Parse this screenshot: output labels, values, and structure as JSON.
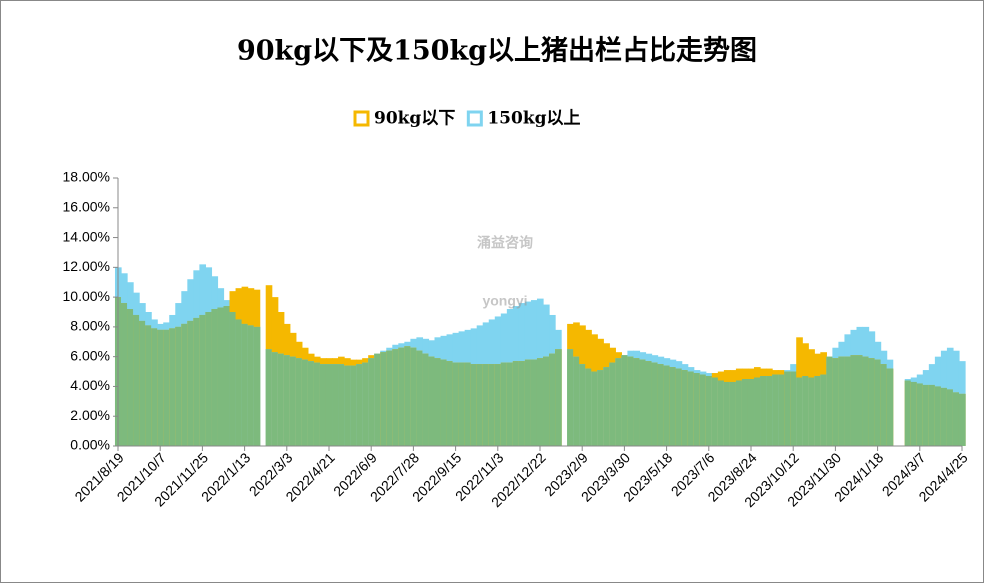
{
  "chart_data": {
    "type": "overlap-bar",
    "title": "90kg以下及150kg以上猪出栏占比走势图",
    "watermark": [
      "涌益咨询",
      "yongyi"
    ],
    "categories": [
      "2021/8/19",
      null,
      null,
      null,
      null,
      null,
      null,
      "2021/10/7",
      null,
      null,
      null,
      null,
      null,
      null,
      "2021/11/25",
      null,
      null,
      null,
      null,
      null,
      null,
      "2022/1/13",
      null,
      null,
      null,
      null,
      null,
      null,
      "2022/3/3",
      null,
      null,
      null,
      null,
      null,
      null,
      "2022/4/21",
      null,
      null,
      null,
      null,
      null,
      null,
      "2022/6/9",
      null,
      null,
      null,
      null,
      null,
      null,
      "2022/7/28",
      null,
      null,
      null,
      null,
      null,
      null,
      "2022/9/15",
      null,
      null,
      null,
      null,
      null,
      null,
      "2022/11/3",
      null,
      null,
      null,
      null,
      null,
      null,
      "2022/12/22",
      null,
      null,
      null,
      null,
      null,
      null,
      "2023/2/9",
      null,
      null,
      null,
      null,
      null,
      null,
      "2023/3/30",
      null,
      null,
      null,
      null,
      null,
      null,
      "2023/5/18",
      null,
      null,
      null,
      null,
      null,
      null,
      "2023/7/6",
      null,
      null,
      null,
      null,
      null,
      null,
      "2023/8/24",
      null,
      null,
      null,
      null,
      null,
      null,
      "2023/10/12",
      null,
      null,
      null,
      null,
      null,
      null,
      "2023/11/30",
      null,
      null,
      null,
      null,
      null,
      null,
      "2024/1/18",
      null,
      null,
      null,
      null,
      null,
      null,
      "2024/3/7",
      null,
      null,
      null,
      null,
      null,
      null,
      "2024/4/25"
    ],
    "series": [
      {
        "name": "90kg以下",
        "color": "#f5b800",
        "values": [
          10.0,
          9.6,
          9.2,
          8.8,
          8.4,
          8.1,
          7.9,
          7.8,
          7.8,
          7.9,
          8.0,
          8.2,
          8.4,
          8.6,
          8.8,
          9.0,
          9.2,
          9.3,
          9.4,
          10.4,
          10.6,
          10.7,
          10.6,
          10.5,
          null,
          10.8,
          10.0,
          9.0,
          8.2,
          7.6,
          7.0,
          6.6,
          6.2,
          6.0,
          5.9,
          5.9,
          5.9,
          6.0,
          5.9,
          5.8,
          5.8,
          5.9,
          6.1,
          6.2,
          6.3,
          6.4,
          6.5,
          6.6,
          6.7,
          6.6,
          6.4,
          6.2,
          6.0,
          5.9,
          5.8,
          5.7,
          5.6,
          5.6,
          5.6,
          5.5,
          5.5,
          5.5,
          5.5,
          5.5,
          5.6,
          5.6,
          5.7,
          5.7,
          5.8,
          5.8,
          5.9,
          6.0,
          6.2,
          6.5,
          null,
          8.2,
          8.3,
          8.1,
          7.8,
          7.5,
          7.2,
          6.9,
          6.6,
          6.3,
          6.1,
          6.0,
          5.9,
          5.8,
          5.7,
          5.6,
          5.5,
          5.4,
          5.3,
          5.2,
          5.1,
          5.0,
          4.9,
          4.8,
          4.7,
          4.9,
          5.0,
          5.1,
          5.1,
          5.2,
          5.2,
          5.2,
          5.3,
          5.2,
          5.2,
          5.1,
          5.1,
          5.0,
          5.0,
          7.3,
          6.9,
          6.5,
          6.2,
          6.3,
          6.0,
          5.9,
          6.0,
          6.0,
          6.1,
          6.1,
          6.0,
          5.9,
          5.8,
          5.5,
          5.2,
          null,
          null,
          4.4,
          4.3,
          4.2,
          4.1,
          4.1,
          4.0,
          3.9,
          3.8,
          3.6,
          3.5
        ]
      },
      {
        "name": "150kg以上",
        "color": "#7fd4f0",
        "values": [
          12.0,
          11.6,
          11.0,
          10.3,
          9.6,
          9.0,
          8.5,
          8.2,
          8.3,
          8.8,
          9.6,
          10.4,
          11.2,
          11.8,
          12.2,
          12.0,
          11.4,
          10.6,
          9.8,
          9.0,
          8.5,
          8.2,
          8.1,
          8.0,
          null,
          6.5,
          6.3,
          6.2,
          6.1,
          6.0,
          5.9,
          5.8,
          5.7,
          5.6,
          5.5,
          5.5,
          5.5,
          5.5,
          5.4,
          5.4,
          5.5,
          5.6,
          5.9,
          6.2,
          6.4,
          6.6,
          6.8,
          6.9,
          7.0,
          7.2,
          7.3,
          7.2,
          7.1,
          7.3,
          7.4,
          7.5,
          7.6,
          7.7,
          7.8,
          7.9,
          8.1,
          8.3,
          8.5,
          8.7,
          8.9,
          9.2,
          9.4,
          9.6,
          9.7,
          9.8,
          9.9,
          9.5,
          8.8,
          7.8,
          null,
          6.5,
          6.0,
          5.5,
          5.2,
          5.0,
          5.1,
          5.3,
          5.6,
          5.9,
          6.1,
          6.4,
          6.4,
          6.3,
          6.2,
          6.1,
          6.0,
          5.9,
          5.8,
          5.7,
          5.5,
          5.3,
          5.1,
          5.0,
          4.9,
          4.6,
          4.4,
          4.3,
          4.3,
          4.4,
          4.5,
          4.5,
          4.6,
          4.7,
          4.7,
          4.8,
          4.8,
          5.1,
          5.5,
          4.6,
          4.7,
          4.6,
          4.7,
          4.8,
          6.0,
          6.6,
          7.0,
          7.5,
          7.8,
          8.0,
          8.0,
          7.7,
          7.0,
          6.4,
          5.8,
          null,
          null,
          4.5,
          4.6,
          4.8,
          5.1,
          5.5,
          6.0,
          6.4,
          6.6,
          6.4,
          5.7
        ]
      }
    ],
    "overlap_color": "#7dba7d",
    "ylim": [
      0,
      18
    ],
    "yticks": [
      {
        "value": 0,
        "label": "0.00%"
      },
      {
        "value": 2,
        "label": "2.00%"
      },
      {
        "value": 4,
        "label": "4.00%"
      },
      {
        "value": 6,
        "label": "6.00%"
      },
      {
        "value": 8,
        "label": "8.00%"
      },
      {
        "value": 10,
        "label": "10.00%"
      },
      {
        "value": 12,
        "label": "12.00%"
      },
      {
        "value": 14,
        "label": "14.00%"
      },
      {
        "value": 16,
        "label": "16.00%"
      },
      {
        "value": 18,
        "label": "18.00%"
      }
    ],
    "legend": "top"
  }
}
